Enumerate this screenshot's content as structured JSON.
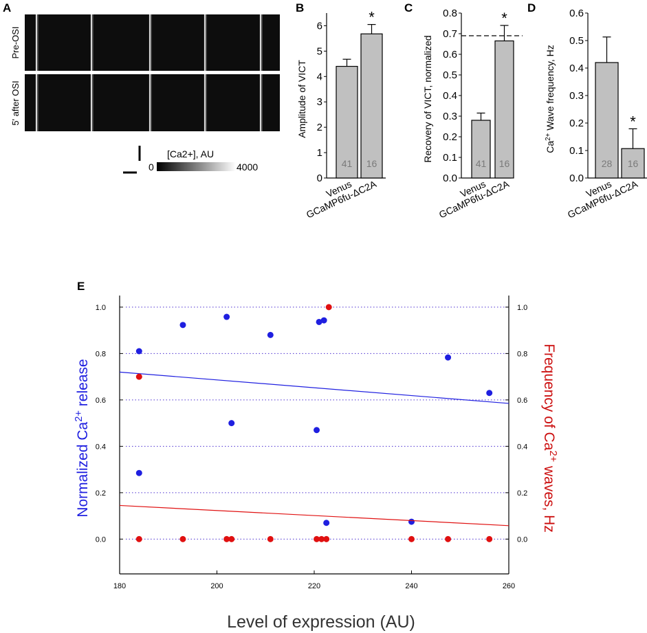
{
  "panels": {
    "a": "A",
    "b": "B",
    "c": "C",
    "d": "D",
    "e": "E"
  },
  "panel_a": {
    "row_labels": [
      "Pre-OSI",
      "5' after OSI"
    ],
    "colorbar_label": "[Ca2+], AU",
    "colorbar_min": "0",
    "colorbar_max": "4000"
  },
  "chart_data": [
    {
      "id": "B",
      "type": "bar",
      "title": "",
      "xlabel": "",
      "ylabel": "Amplitude of VICT",
      "categories": [
        "Venus",
        "GCaMP6fu-ΔC2A"
      ],
      "values": [
        4.4,
        5.68
      ],
      "errors": [
        0.28,
        0.37
      ],
      "n": [
        "41",
        "16"
      ],
      "significance": [
        "",
        "*"
      ],
      "ylim": [
        0,
        6.5
      ],
      "yticks": [
        "0",
        "1",
        "2",
        "3",
        "4",
        "5",
        "6"
      ],
      "bar_color": "#c0c0c0"
    },
    {
      "id": "C",
      "type": "bar",
      "title": "",
      "xlabel": "",
      "ylabel": "Recovery of VICT, normalized",
      "categories": [
        "Venus",
        "GCaMP6fu-ΔC2A"
      ],
      "values": [
        0.28,
        0.665
      ],
      "errors": [
        0.035,
        0.075
      ],
      "n": [
        "41",
        "16"
      ],
      "significance": [
        "",
        "*"
      ],
      "reference_line": 0.69,
      "ylim": [
        0,
        0.8
      ],
      "yticks": [
        "0.0",
        "0.1",
        "0.2",
        "0.3",
        "0.4",
        "0.5",
        "0.6",
        "0.7",
        "0.8"
      ],
      "bar_color": "#c0c0c0"
    },
    {
      "id": "D",
      "type": "bar",
      "title": "",
      "xlabel": "",
      "ylabel": "Ca2+ Wave frequency, Hz",
      "categories": [
        "Venus",
        "GCaMP6fu-ΔC2A"
      ],
      "values": [
        0.42,
        0.107
      ],
      "errors": [
        0.093,
        0.072
      ],
      "n": [
        "28",
        "16"
      ],
      "significance": [
        "",
        "*"
      ],
      "ylim": [
        0,
        0.6
      ],
      "yticks": [
        "0.0",
        "0.1",
        "0.2",
        "0.3",
        "0.4",
        "0.5",
        "0.6"
      ],
      "bar_color": "#c0c0c0"
    },
    {
      "id": "E",
      "type": "scatter",
      "title": "",
      "xlabel": "Level of expression (AU)",
      "ylabel": "Normalized Ca2+ release",
      "y2label": "Frequency of Ca2+ waves, Hz",
      "xlim": [
        180,
        260
      ],
      "ylim": [
        -0.15,
        1.05
      ],
      "xticks": [
        "180",
        "200",
        "220",
        "240",
        "260"
      ],
      "yticks": [
        "0.0",
        "0.2",
        "0.4",
        "0.6",
        "0.8",
        "1.0"
      ],
      "y2ticks": [
        "0.0",
        "0.2",
        "0.4",
        "0.6",
        "0.8",
        "1.0"
      ],
      "series": [
        {
          "name": "Normalized Ca2+ release",
          "color": "#1f1fe0",
          "points": [
            [
              184,
              0.81
            ],
            [
              184,
              0.285
            ],
            [
              193,
              0.923
            ],
            [
              202,
              0.958
            ],
            [
              203,
              0.5
            ],
            [
              211,
              0.88
            ],
            [
              220.5,
              0.47
            ],
            [
              221,
              0.936
            ],
            [
              222,
              0.943
            ],
            [
              222.5,
              0.07
            ],
            [
              240,
              0.075
            ],
            [
              247.5,
              0.783
            ],
            [
              256,
              0.63
            ]
          ],
          "fit": [
            [
              180,
              0.72
            ],
            [
              260,
              0.585
            ]
          ]
        },
        {
          "name": "Frequency of Ca2+ waves",
          "color": "#e01010",
          "points": [
            [
              184,
              0.7
            ],
            [
              184,
              0.0
            ],
            [
              193,
              0.0
            ],
            [
              202,
              0.0
            ],
            [
              203,
              0.0
            ],
            [
              211,
              0.0
            ],
            [
              220.5,
              0.0
            ],
            [
              221.5,
              0.0
            ],
            [
              222.5,
              0.0
            ],
            [
              223,
              1.0
            ],
            [
              240,
              0.0
            ],
            [
              247.5,
              0.0
            ],
            [
              256,
              0.0
            ]
          ],
          "fit": [
            [
              180,
              0.145
            ],
            [
              260,
              0.058
            ]
          ]
        }
      ]
    }
  ]
}
